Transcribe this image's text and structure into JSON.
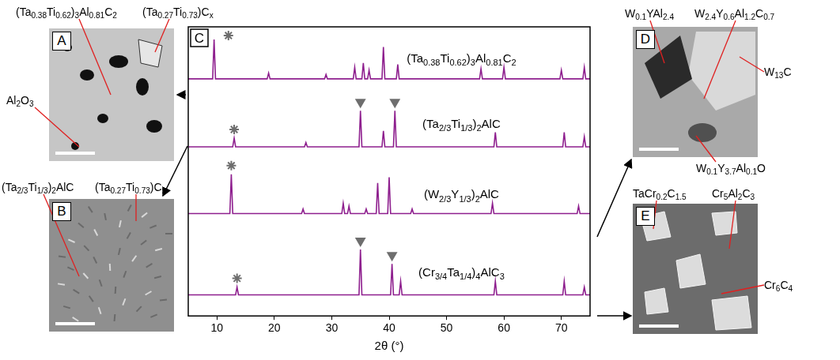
{
  "chart_data": {
    "type": "line",
    "panel_label": "C",
    "x_label": "2θ (°)",
    "xlim": [
      5,
      75
    ],
    "xticks": [
      10,
      20,
      30,
      40,
      50,
      60,
      70
    ],
    "ylim": [
      0,
      100
    ],
    "tick_labels": "x",
    "grid": false,
    "series": [
      {
        "name": "(Ta0.38Ti0.62)3Al0.81C2",
        "color": "#8e1f8e",
        "x": [
          5,
          9.25,
          9.5,
          9.75,
          18.75,
          19,
          19.25,
          28.75,
          29,
          29.25,
          33.75,
          34,
          34.25,
          35.25,
          35.5,
          35.75,
          36.25,
          36.5,
          36.75,
          38.75,
          39,
          39.25,
          41.25,
          41.5,
          41.75,
          55.75,
          56,
          56.25,
          59.75,
          60,
          60.25,
          69.75,
          70,
          70.25,
          73.75,
          74,
          74.25,
          75
        ],
        "values": [
          82,
          82,
          95.6,
          82,
          82,
          84,
          82,
          82,
          83.5,
          82,
          82,
          86,
          82,
          82,
          87.5,
          82,
          82,
          85,
          82,
          82,
          93,
          82,
          82,
          87,
          82,
          82,
          85.5,
          82,
          82,
          86,
          82,
          82,
          85,
          82,
          82,
          86,
          82,
          82
        ]
      },
      {
        "name": "(Ta2/3Ti1/3)2AlC",
        "color": "#8e1f8e",
        "x": [
          5,
          12.75,
          13,
          13.25,
          25.25,
          25.5,
          25.75,
          34.75,
          35,
          35.25,
          38.75,
          39,
          39.25,
          40.75,
          41,
          41.25,
          58.25,
          58.5,
          58.75,
          70.25,
          70.5,
          70.75,
          73.75,
          74,
          74.25,
          75
        ],
        "values": [
          58.5,
          58.5,
          61.5,
          58.5,
          58.5,
          60,
          58.5,
          58.5,
          71,
          58.5,
          58.5,
          64,
          58.5,
          58.5,
          71,
          58.5,
          58.5,
          63.5,
          58.5,
          58.5,
          63.5,
          58.5,
          58.5,
          62,
          58.5,
          58.5
        ]
      },
      {
        "name": "(W2/3Y1/3)2AlC",
        "color": "#8e1f8e",
        "x": [
          5,
          12.25,
          12.5,
          12.75,
          24.75,
          25,
          25.25,
          31.75,
          32,
          32.25,
          32.75,
          33,
          33.25,
          35.75,
          36,
          36.25,
          37.75,
          38,
          38.25,
          39.75,
          40,
          40.25,
          43.75,
          44,
          44.25,
          57.75,
          58,
          58.25,
          72.75,
          73,
          73.25,
          75
        ],
        "values": [
          35.4,
          35.4,
          49,
          35.4,
          35.4,
          37,
          35.4,
          35.4,
          39,
          35.4,
          35.4,
          38,
          35.4,
          35.4,
          37,
          35.4,
          35.4,
          46,
          35.4,
          35.4,
          48,
          35.4,
          35.4,
          37,
          35.4,
          35.4,
          39,
          35.4,
          35.4,
          38,
          35.4,
          35.4
        ]
      },
      {
        "name": "(Cr3/4Ta1/4)4AlC3",
        "color": "#8e1f8e",
        "x": [
          5,
          13.25,
          13.5,
          13.75,
          34.75,
          35,
          35.25,
          40.25,
          40.5,
          40.75,
          41.75,
          42,
          42.25,
          58.25,
          58.5,
          58.75,
          70.25,
          70.5,
          70.75,
          73.75,
          74,
          74.25,
          75
        ],
        "values": [
          7.3,
          7.3,
          10,
          7.3,
          7.3,
          23,
          7.3,
          7.3,
          18,
          7.3,
          7.3,
          12,
          7.3,
          7.3,
          12,
          7.3,
          7.3,
          12,
          7.3,
          7.3,
          10,
          7.3,
          7.3
        ]
      }
    ],
    "markers": [
      {
        "x": 12,
        "y": 97,
        "marker": "star"
      },
      {
        "x": 13,
        "y": 64.5,
        "marker": "star"
      },
      {
        "x": 35,
        "y": 74,
        "marker": "triangle_down"
      },
      {
        "x": 41,
        "y": 74,
        "marker": "triangle_down"
      },
      {
        "x": 12.5,
        "y": 52,
        "marker": "star"
      },
      {
        "x": 13.5,
        "y": 13,
        "marker": "star"
      },
      {
        "x": 35,
        "y": 26,
        "marker": "triangle_down"
      },
      {
        "x": 40.5,
        "y": 21,
        "marker": "triangle_down"
      }
    ]
  },
  "panels": [
    {
      "letter": "A",
      "labels": [
        "(Ta0.38Ti0.62)3Al0.81C2",
        "(Ta0.27Ti0.73)Cx",
        "Al2O3"
      ]
    },
    {
      "letter": "B",
      "labels": [
        "(Ta2/3Ti1/3)2AlC",
        "(Ta0.27Ti0.73)Cx"
      ]
    },
    {
      "letter": "D",
      "labels": [
        "W0.1YAl2.4",
        "W2.4Y0.6Al1.2C0.7",
        "W13C",
        "W0.1Y3.7Al0.1O"
      ]
    },
    {
      "letter": "E",
      "labels": [
        "TaCr0.2C1.5",
        "Cr5Al2C3",
        "Cr6C4"
      ]
    }
  ]
}
